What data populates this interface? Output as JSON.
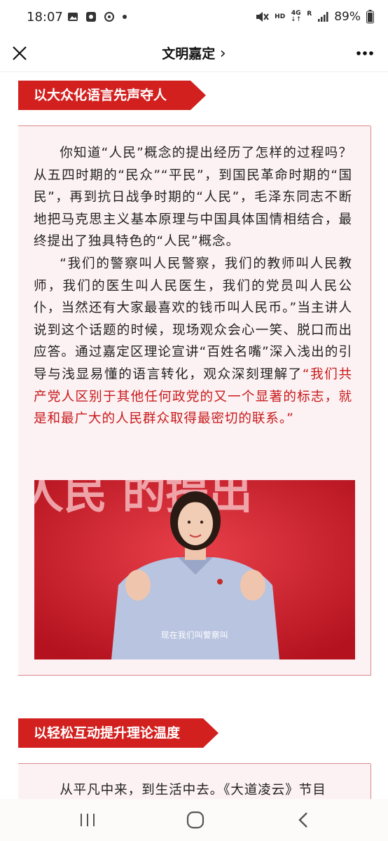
{
  "status_bar": {
    "time": "18:07",
    "hd": "HD",
    "net_4g": "4G",
    "net_r": "R",
    "battery": "89%",
    "icons": [
      "image-icon",
      "media-icon",
      "sync-icon",
      "dot-icon",
      "mute-icon",
      "signal-icon",
      "battery-icon"
    ]
  },
  "nav": {
    "title": "文明嘉定",
    "chevron": "›",
    "close_icon": "close-icon",
    "more_icon": "more-icon"
  },
  "sections": [
    {
      "heading": "以大众化语言先声夺人"
    },
    {
      "heading": "以轻松互动提升理论温度"
    }
  ],
  "article": {
    "p1": "你知道“人民”概念的提出经历了怎样的过程吗？从五四时期的“民众”“平民”，到国民革命时期的“国民”，再到抗日战争时期的“人民”，毛泽东同志不断地把马克思主义基本原理与中国具体国情相结合，最终提出了独具特色的“人民”概念。",
    "p2": "“我们的警察叫人民警察，我们的教师叫人民教师，我们的医生叫人民医生，我们的党员叫人民公仆，当然还有大家最喜欢的钱币叫人民币。”当主讲人说到这个话题的时候，现场观众会心一笑、脱口而出应答。通过嘉定区理论宣讲“百姓名嘴”深入浅出的引导与浅显易懂的语言转化，观众深刻理解了",
    "p2_highlight": "“我们共产党人区别于其他任何政党的又一个显著的标志，就是和最广大的人民群众取得最密切的联系。”",
    "photo_bg_text": "人民  的提出",
    "photo_caption": "现在我们叫警察叫",
    "p3_partial": "从平凡中来，到生活中去。《大道凌云》节目"
  },
  "colors": {
    "accent": "#d2201f",
    "highlight_text": "#c7191c",
    "panel_bg": "#fdf2f3"
  },
  "system_nav": {
    "recents_icon": "recents-icon",
    "home_icon": "home-icon",
    "back_icon": "back-icon"
  }
}
